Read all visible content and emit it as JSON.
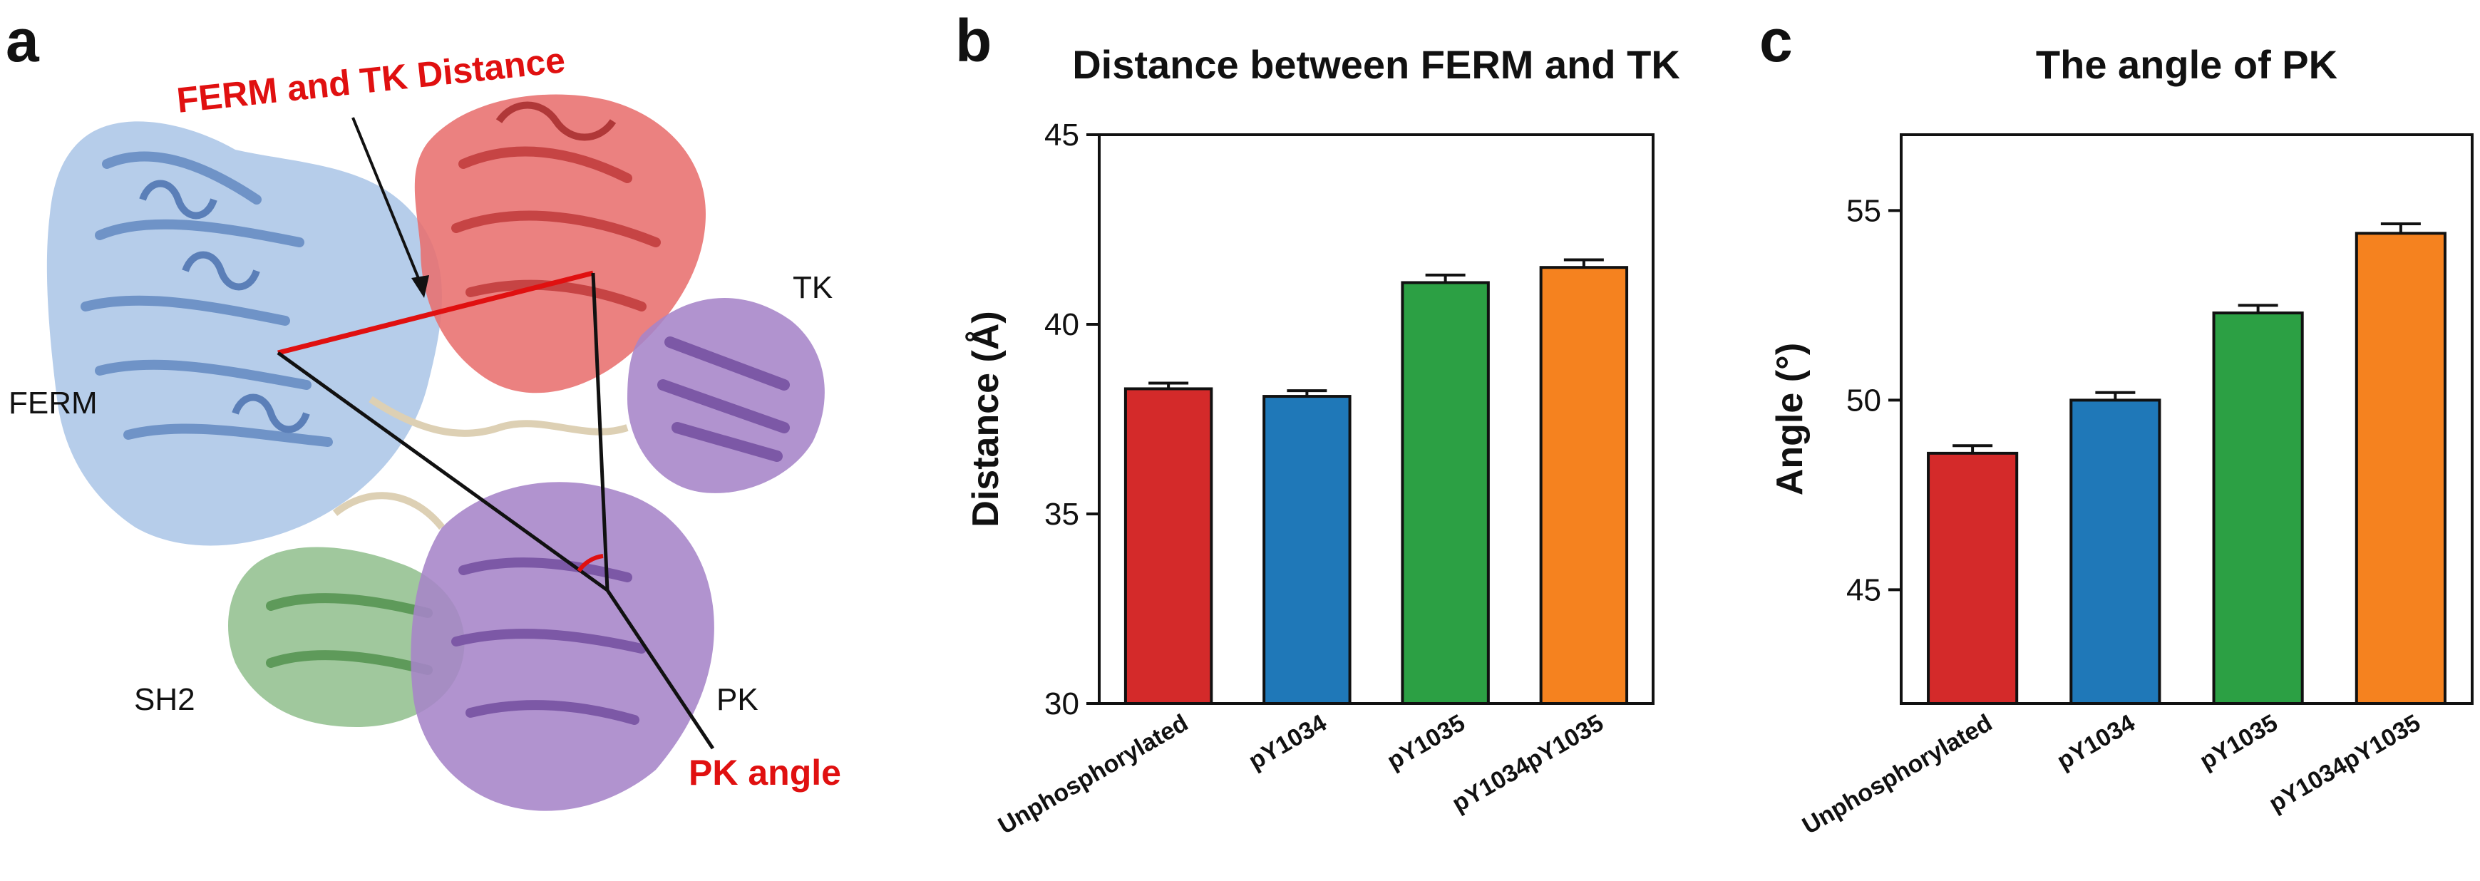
{
  "panels": {
    "a": {
      "letter": "a"
    },
    "b": {
      "letter": "b"
    },
    "c": {
      "letter": "c"
    }
  },
  "structure": {
    "labels": {
      "ferm": "FERM",
      "tk": "TK",
      "sh2": "SH2",
      "pk": "PK"
    },
    "annotations": {
      "distance": "FERM and TK Distance",
      "angle": "PK angle"
    },
    "colors": {
      "ferm": "#a9c4e6",
      "tk": "#e8706e",
      "sh2": "#93c08f",
      "pk": "#a684c8",
      "linker": "#ddd0b4",
      "annotation": "#e01010"
    }
  },
  "chart_data": [
    {
      "type": "bar",
      "title": "Distance between FERM and TK",
      "xlabel": "",
      "ylabel": "Distance (Å)",
      "ylim": [
        30,
        45
      ],
      "yticks": [
        30,
        35,
        40,
        45
      ],
      "categories": [
        "Unphosphorylated",
        "pY1034",
        "pY1035",
        "pY1034pY1035"
      ],
      "values": [
        38.3,
        38.1,
        41.1,
        41.5
      ],
      "errors": [
        0.15,
        0.15,
        0.2,
        0.2
      ],
      "colors": [
        "#d42a2a",
        "#1f78b8",
        "#2ca044",
        "#f5821f"
      ]
    },
    {
      "type": "bar",
      "title": "The angle of PK",
      "xlabel": "",
      "ylabel": "Angle (°)",
      "ylim": [
        42,
        57
      ],
      "yticks": [
        45,
        50,
        55
      ],
      "categories": [
        "Unphosphorylated",
        "pY1034",
        "pY1035",
        "pY1034pY1035"
      ],
      "values": [
        48.6,
        50.0,
        52.3,
        54.4
      ],
      "errors": [
        0.2,
        0.2,
        0.2,
        0.25
      ],
      "colors": [
        "#d42a2a",
        "#1f78b8",
        "#2ca044",
        "#f5821f"
      ]
    }
  ]
}
